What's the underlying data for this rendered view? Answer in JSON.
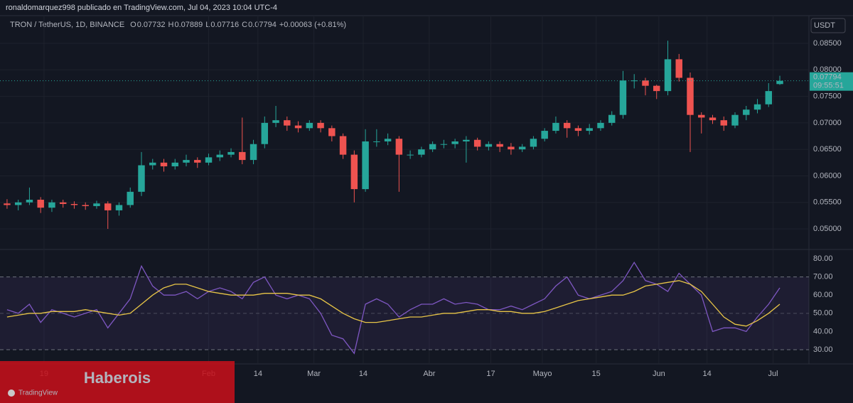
{
  "header": {
    "author_line": "ronaldomarquez998 publicado en TradingView.com, Jul 04, 2023 10:04 UTC-4",
    "symbol": "TRON / TetherUS, 1D, BINANCE",
    "ohlc": [
      {
        "key": "O",
        "value": "0.07732"
      },
      {
        "key": "H",
        "value": "0.07889"
      },
      {
        "key": "L",
        "value": "0.07716"
      },
      {
        "key": "C",
        "value": "0.07794"
      }
    ],
    "change": "+0.00063 (+0.81%)"
  },
  "chart_data": [
    {
      "type": "candlestick",
      "currency": "USDT",
      "up_color": "#26a69a",
      "down_color": "#ef5350",
      "last_price": {
        "label": "0.07794",
        "countdown": "09:55:51"
      },
      "open": [
        0.0548,
        0.0545,
        0.055,
        0.0555,
        0.054,
        0.055,
        0.0547,
        0.0545,
        0.0543,
        0.0548,
        0.0535,
        0.0545,
        0.057,
        0.062,
        0.0625,
        0.0618,
        0.0625,
        0.063,
        0.0625,
        0.0635,
        0.064,
        0.0645,
        0.063,
        0.066,
        0.07,
        0.0705,
        0.0695,
        0.069,
        0.07,
        0.069,
        0.0675,
        0.064,
        0.0575,
        0.0665,
        0.0665,
        0.067,
        0.064,
        0.064,
        0.065,
        0.066,
        0.066,
        0.0665,
        0.0668,
        0.0655,
        0.066,
        0.0655,
        0.065,
        0.0655,
        0.067,
        0.0685,
        0.07,
        0.069,
        0.0685,
        0.069,
        0.07,
        0.0715,
        0.078,
        0.078,
        0.077,
        0.076,
        0.082,
        0.0785,
        0.0715,
        0.071,
        0.0705,
        0.0695,
        0.0715,
        0.0725,
        0.0735,
        0.07732
      ],
      "high": [
        0.0556,
        0.0555,
        0.0578,
        0.056,
        0.0555,
        0.0555,
        0.0552,
        0.055,
        0.0553,
        0.0552,
        0.055,
        0.0578,
        0.0645,
        0.0632,
        0.0632,
        0.0632,
        0.064,
        0.0635,
        0.0642,
        0.0648,
        0.0652,
        0.071,
        0.0668,
        0.0712,
        0.0732,
        0.0712,
        0.0703,
        0.0705,
        0.0705,
        0.0695,
        0.068,
        0.0648,
        0.0688,
        0.0688,
        0.068,
        0.0675,
        0.0648,
        0.0655,
        0.0665,
        0.0668,
        0.067,
        0.0675,
        0.0672,
        0.0665,
        0.0665,
        0.0662,
        0.066,
        0.0675,
        0.069,
        0.0712,
        0.0705,
        0.0695,
        0.0698,
        0.0705,
        0.0722,
        0.0798,
        0.0792,
        0.0785,
        0.0772,
        0.0855,
        0.083,
        0.0795,
        0.072,
        0.0715,
        0.0712,
        0.072,
        0.0732,
        0.0745,
        0.0775,
        0.07889
      ],
      "low": [
        0.0538,
        0.0535,
        0.0545,
        0.053,
        0.0532,
        0.054,
        0.0538,
        0.0536,
        0.0538,
        0.05,
        0.0525,
        0.054,
        0.0562,
        0.0612,
        0.0608,
        0.0612,
        0.0618,
        0.0615,
        0.062,
        0.0628,
        0.0635,
        0.0622,
        0.0622,
        0.0652,
        0.0692,
        0.0685,
        0.0682,
        0.0685,
        0.0682,
        0.0665,
        0.0632,
        0.055,
        0.057,
        0.0655,
        0.0658,
        0.057,
        0.0632,
        0.0635,
        0.0645,
        0.0652,
        0.0652,
        0.0625,
        0.0648,
        0.0648,
        0.0645,
        0.064,
        0.0645,
        0.065,
        0.0665,
        0.068,
        0.0672,
        0.0675,
        0.0678,
        0.0685,
        0.0695,
        0.0708,
        0.0765,
        0.0752,
        0.0745,
        0.0752,
        0.0778,
        0.0645,
        0.068,
        0.0698,
        0.0685,
        0.069,
        0.0705,
        0.0718,
        0.073,
        0.07716
      ],
      "close": [
        0.0545,
        0.055,
        0.0555,
        0.054,
        0.055,
        0.0547,
        0.0545,
        0.0543,
        0.0548,
        0.0535,
        0.0545,
        0.057,
        0.062,
        0.0625,
        0.0618,
        0.0625,
        0.063,
        0.0625,
        0.0635,
        0.064,
        0.0645,
        0.063,
        0.066,
        0.07,
        0.0705,
        0.0695,
        0.069,
        0.07,
        0.069,
        0.0675,
        0.064,
        0.0575,
        0.0665,
        0.0665,
        0.067,
        0.064,
        0.064,
        0.065,
        0.066,
        0.066,
        0.0665,
        0.0668,
        0.0655,
        0.066,
        0.0655,
        0.065,
        0.0655,
        0.067,
        0.0685,
        0.07,
        0.069,
        0.0685,
        0.069,
        0.07,
        0.0715,
        0.078,
        0.078,
        0.077,
        0.076,
        0.082,
        0.0785,
        0.0715,
        0.071,
        0.0705,
        0.0695,
        0.0715,
        0.0725,
        0.0735,
        0.076,
        0.07794
      ],
      "xlim": [
        -0.63,
        71.6
      ],
      "xticks": [
        {
          "value": 3.3,
          "label": "19"
        },
        {
          "value": 18.0,
          "label": "Feb"
        },
        {
          "value": 22.4,
          "label": "14"
        },
        {
          "value": 27.4,
          "label": "Mar"
        },
        {
          "value": 31.8,
          "label": "14"
        },
        {
          "value": 37.7,
          "label": "Abr"
        },
        {
          "value": 43.2,
          "label": "17"
        },
        {
          "value": 47.8,
          "label": "Mayo"
        },
        {
          "value": 52.6,
          "label": "15"
        },
        {
          "value": 58.2,
          "label": "Jun"
        },
        {
          "value": 62.5,
          "label": "14"
        },
        {
          "value": 68.4,
          "label": "Jul"
        }
      ],
      "ylim": [
        0.04625,
        0.09023
      ],
      "yticks": [
        {
          "value": 0.05,
          "label": "0.05000"
        },
        {
          "value": 0.055,
          "label": "0.05500"
        },
        {
          "value": 0.06,
          "label": "0.06000"
        },
        {
          "value": 0.065,
          "label": "0.06500"
        },
        {
          "value": 0.07,
          "label": "0.07000"
        },
        {
          "value": 0.075,
          "label": "0.07500"
        },
        {
          "value": 0.08,
          "label": "0.08000"
        },
        {
          "value": 0.085,
          "label": "0.08500"
        }
      ],
      "grid": true
    },
    {
      "type": "line",
      "band": {
        "upper": 70,
        "middle": 50,
        "lower": 30
      },
      "band_color": "#7e57c2",
      "series": [
        {
          "color": "#7e57c2",
          "values": [
            52,
            50,
            55,
            45,
            52,
            50,
            48,
            50,
            52,
            42,
            50,
            58,
            76,
            65,
            60,
            60,
            62,
            58,
            62,
            64,
            62,
            58,
            67,
            70,
            60,
            58,
            60,
            58,
            50,
            38,
            36,
            28,
            55,
            58,
            55,
            48,
            52,
            55,
            55,
            58,
            55,
            56,
            55,
            52,
            52,
            54,
            52,
            55,
            58,
            65,
            70,
            60,
            58,
            60,
            62,
            68,
            78,
            68,
            66,
            62,
            72,
            66,
            60,
            40,
            42,
            42,
            40,
            48,
            55,
            64
          ]
        },
        {
          "color": "#e8c547",
          "values": [
            48,
            49,
            50,
            50,
            51,
            51,
            51,
            52,
            51,
            50,
            49,
            50,
            55,
            60,
            64,
            66,
            66,
            64,
            62,
            61,
            60,
            60,
            60,
            61,
            61,
            61,
            60,
            60,
            58,
            54,
            50,
            47,
            45,
            45,
            46,
            47,
            48,
            48,
            49,
            50,
            50,
            51,
            52,
            52,
            51,
            51,
            50,
            50,
            51,
            53,
            55,
            57,
            58,
            59,
            60,
            60,
            62,
            65,
            66,
            67,
            68,
            66,
            62,
            55,
            48,
            44,
            43,
            46,
            50,
            55
          ]
        }
      ],
      "ylim": [
        22.2,
        84.7
      ],
      "yticks": [
        {
          "value": 30,
          "label": "30.00"
        },
        {
          "value": 40,
          "label": "40.00"
        },
        {
          "value": 50,
          "label": "50.00"
        },
        {
          "value": 60,
          "label": "60.00"
        },
        {
          "value": 70,
          "label": "70.00"
        },
        {
          "value": 80,
          "label": "80.00"
        }
      ],
      "grid": true
    }
  ],
  "watermark": "Haberois",
  "brand": "TradingView"
}
